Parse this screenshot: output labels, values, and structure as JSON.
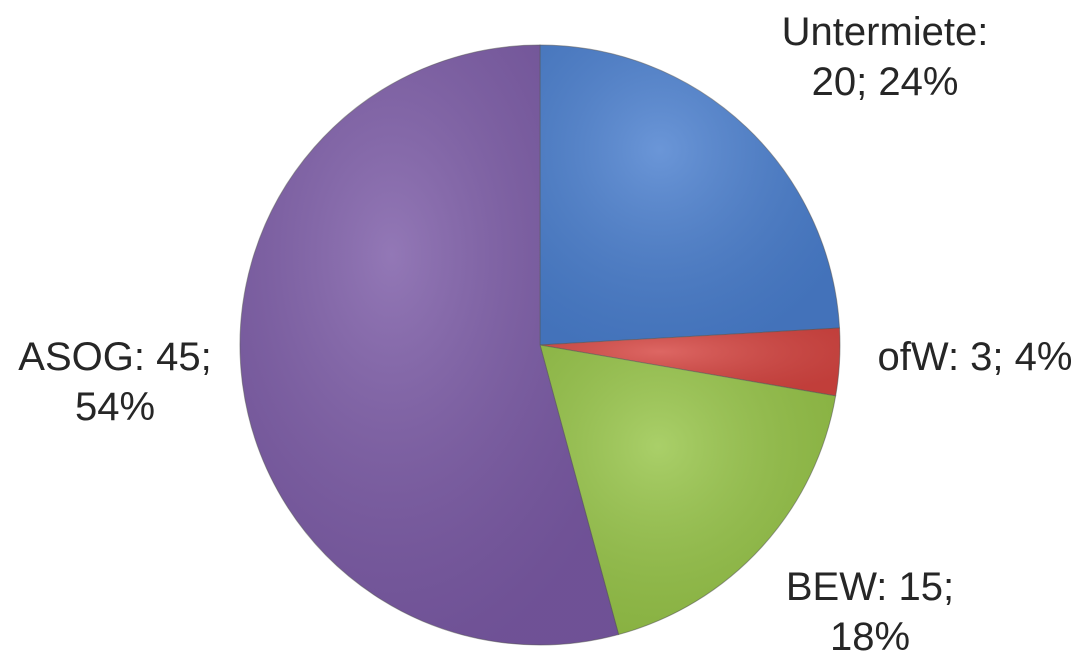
{
  "chart_data": {
    "type": "pie",
    "title": "",
    "slices": [
      {
        "name": "Untermiete",
        "value": 20,
        "percent": 24,
        "color": "#4a7fcf",
        "label_lines": [
          "Untermiete:",
          "20; 24%"
        ]
      },
      {
        "name": "ofW",
        "value": 3,
        "percent": 4,
        "color": "#d64541",
        "label_lines": [
          "ofW: 3; 4%"
        ]
      },
      {
        "name": "BEW",
        "value": 15,
        "percent": 18,
        "color": "#97c548",
        "label_lines": [
          "BEW: 15;",
          "18%"
        ]
      },
      {
        "name": "ASOG",
        "value": 45,
        "percent": 54,
        "color": "#7b5aa6",
        "label_lines": [
          "ASOG: 45;",
          "54%"
        ]
      }
    ],
    "start_angle_deg": 0,
    "direction": "clockwise",
    "legend": "none"
  }
}
